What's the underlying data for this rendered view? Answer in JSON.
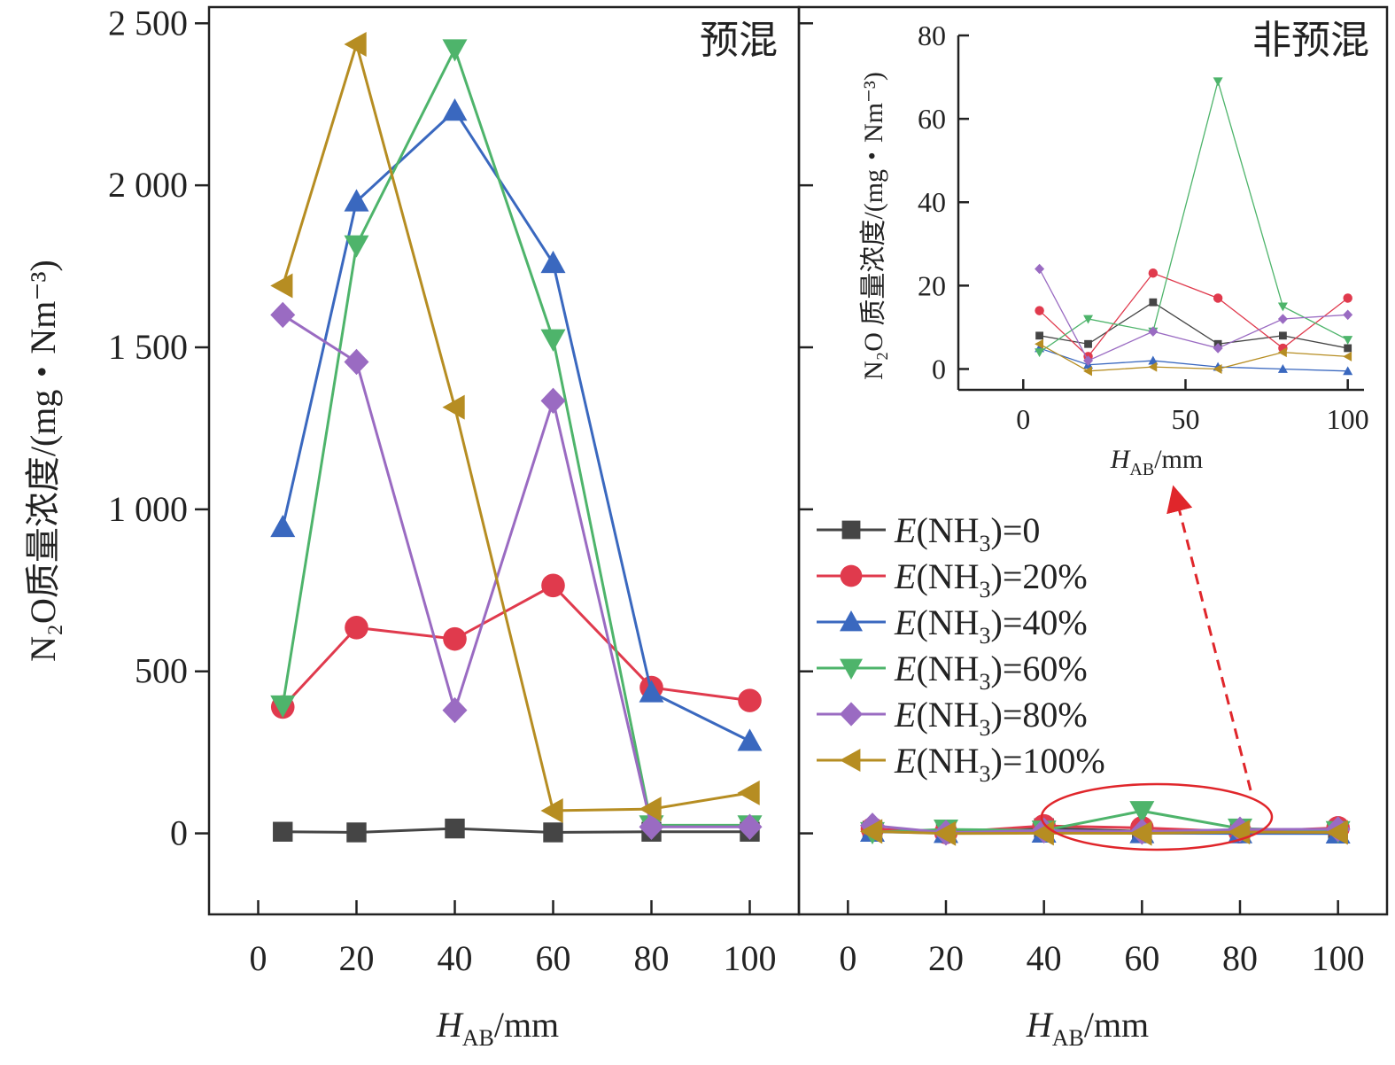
{
  "chart_data": {
    "type": "line",
    "ylabel": "N₂O质量浓度/(mg・Nm⁻³)",
    "ylim": [
      -250,
      2550
    ],
    "yticks": [
      0,
      500,
      1000,
      1500,
      2000,
      2500
    ],
    "ytick_labels": [
      "0",
      "500",
      "1 000",
      "1 500",
      "2 000",
      "2 500"
    ],
    "xlim": [
      -10,
      110
    ],
    "xticks": [
      0,
      20,
      40,
      60,
      80,
      100
    ],
    "xtick_labels": [
      "0",
      "20",
      "40",
      "60",
      "80",
      "100"
    ],
    "xlabel": "H_AB/mm",
    "xlabel_parts": {
      "var": "H",
      "sub": "AB",
      "unit": "/mm"
    },
    "legend": {
      "placement": "right-panel middle",
      "entries": [
        {
          "prefix": "E",
          "mid": "(NH",
          "sub": "3",
          "suffix": ")=0"
        },
        {
          "prefix": "E",
          "mid": "(NH",
          "sub": "3",
          "suffix": ")=20%"
        },
        {
          "prefix": "E",
          "mid": "(NH",
          "sub": "3",
          "suffix": ")=40%"
        },
        {
          "prefix": "E",
          "mid": "(NH",
          "sub": "3",
          "suffix": ")=60%"
        },
        {
          "prefix": "E",
          "mid": "(NH",
          "sub": "3",
          "suffix": ")=80%"
        },
        {
          "prefix": "E",
          "mid": "(NH",
          "sub": "3",
          "suffix": ")=100%"
        }
      ]
    },
    "series_style": [
      {
        "name": "E(NH3)=0",
        "color": "#454545",
        "marker": "square"
      },
      {
        "name": "E(NH3)=20%",
        "color": "#e03a4d",
        "marker": "circle"
      },
      {
        "name": "E(NH3)=40%",
        "color": "#3a68bf",
        "marker": "triangle-up"
      },
      {
        "name": "E(NH3)=60%",
        "color": "#4eb46b",
        "marker": "triangle-down"
      },
      {
        "name": "E(NH3)=80%",
        "color": "#9a6bc2",
        "marker": "diamond"
      },
      {
        "name": "E(NH3)=100%",
        "color": "#b68d22",
        "marker": "triangle-left"
      }
    ],
    "panels": [
      {
        "label": "预混",
        "x": [
          5,
          20,
          40,
          60,
          80,
          100
        ],
        "series": [
          {
            "name": "E(NH3)=0",
            "values": [
              5,
              3,
              15,
              3,
              5,
              5
            ]
          },
          {
            "name": "E(NH3)=20%",
            "values": [
              390,
              635,
              600,
              765,
              450,
              410
            ]
          },
          {
            "name": "E(NH3)=40%",
            "values": [
              945,
              1950,
              2230,
              1760,
              435,
              285
            ]
          },
          {
            "name": "E(NH3)=60%",
            "values": [
              395,
              1815,
              2420,
              1525,
              25,
              25
            ]
          },
          {
            "name": "E(NH3)=80%",
            "values": [
              1600,
              1455,
              380,
              1335,
              20,
              20
            ]
          },
          {
            "name": "E(NH3)=100%",
            "values": [
              1690,
              2435,
              1315,
              70,
              75,
              125
            ]
          }
        ]
      },
      {
        "label": "非预混",
        "x": [
          5,
          20,
          40,
          60,
          80,
          100
        ],
        "series": [
          {
            "name": "E(NH3)=0",
            "values": [
              8,
              6,
              16,
              6,
              8,
              5
            ]
          },
          {
            "name": "E(NH3)=20%",
            "values": [
              14,
              3,
              23,
              17,
              5,
              17
            ]
          },
          {
            "name": "E(NH3)=40%",
            "values": [
              5,
              1,
              2,
              0.5,
              0,
              -0.5
            ]
          },
          {
            "name": "E(NH3)=60%",
            "values": [
              4,
              12,
              9,
              69,
              15,
              7
            ]
          },
          {
            "name": "E(NH3)=80%",
            "values": [
              24,
              2,
              9,
              5,
              12,
              13
            ]
          },
          {
            "name": "E(NH3)=100%",
            "values": [
              6,
              -0.5,
              0.5,
              0,
              4,
              3
            ]
          }
        ]
      }
    ],
    "inset": {
      "panel": "非预混",
      "ylabel": "N₂O 质量浓度/(mg・Nm⁻³)",
      "ylim": [
        -5,
        80
      ],
      "yticks": [
        0,
        20,
        40,
        60,
        80
      ],
      "ytick_labels": [
        "0",
        "20",
        "40",
        "60",
        "80"
      ],
      "xlim": [
        -20,
        105
      ],
      "xticks": [
        0,
        50,
        100
      ],
      "xtick_labels": [
        "0",
        "50",
        "100"
      ],
      "xlabel": "H_AB/mm",
      "annotation": "red ellipse around the 60% peak in the right panel, dashed red arrow pointing up to the inset"
    }
  }
}
